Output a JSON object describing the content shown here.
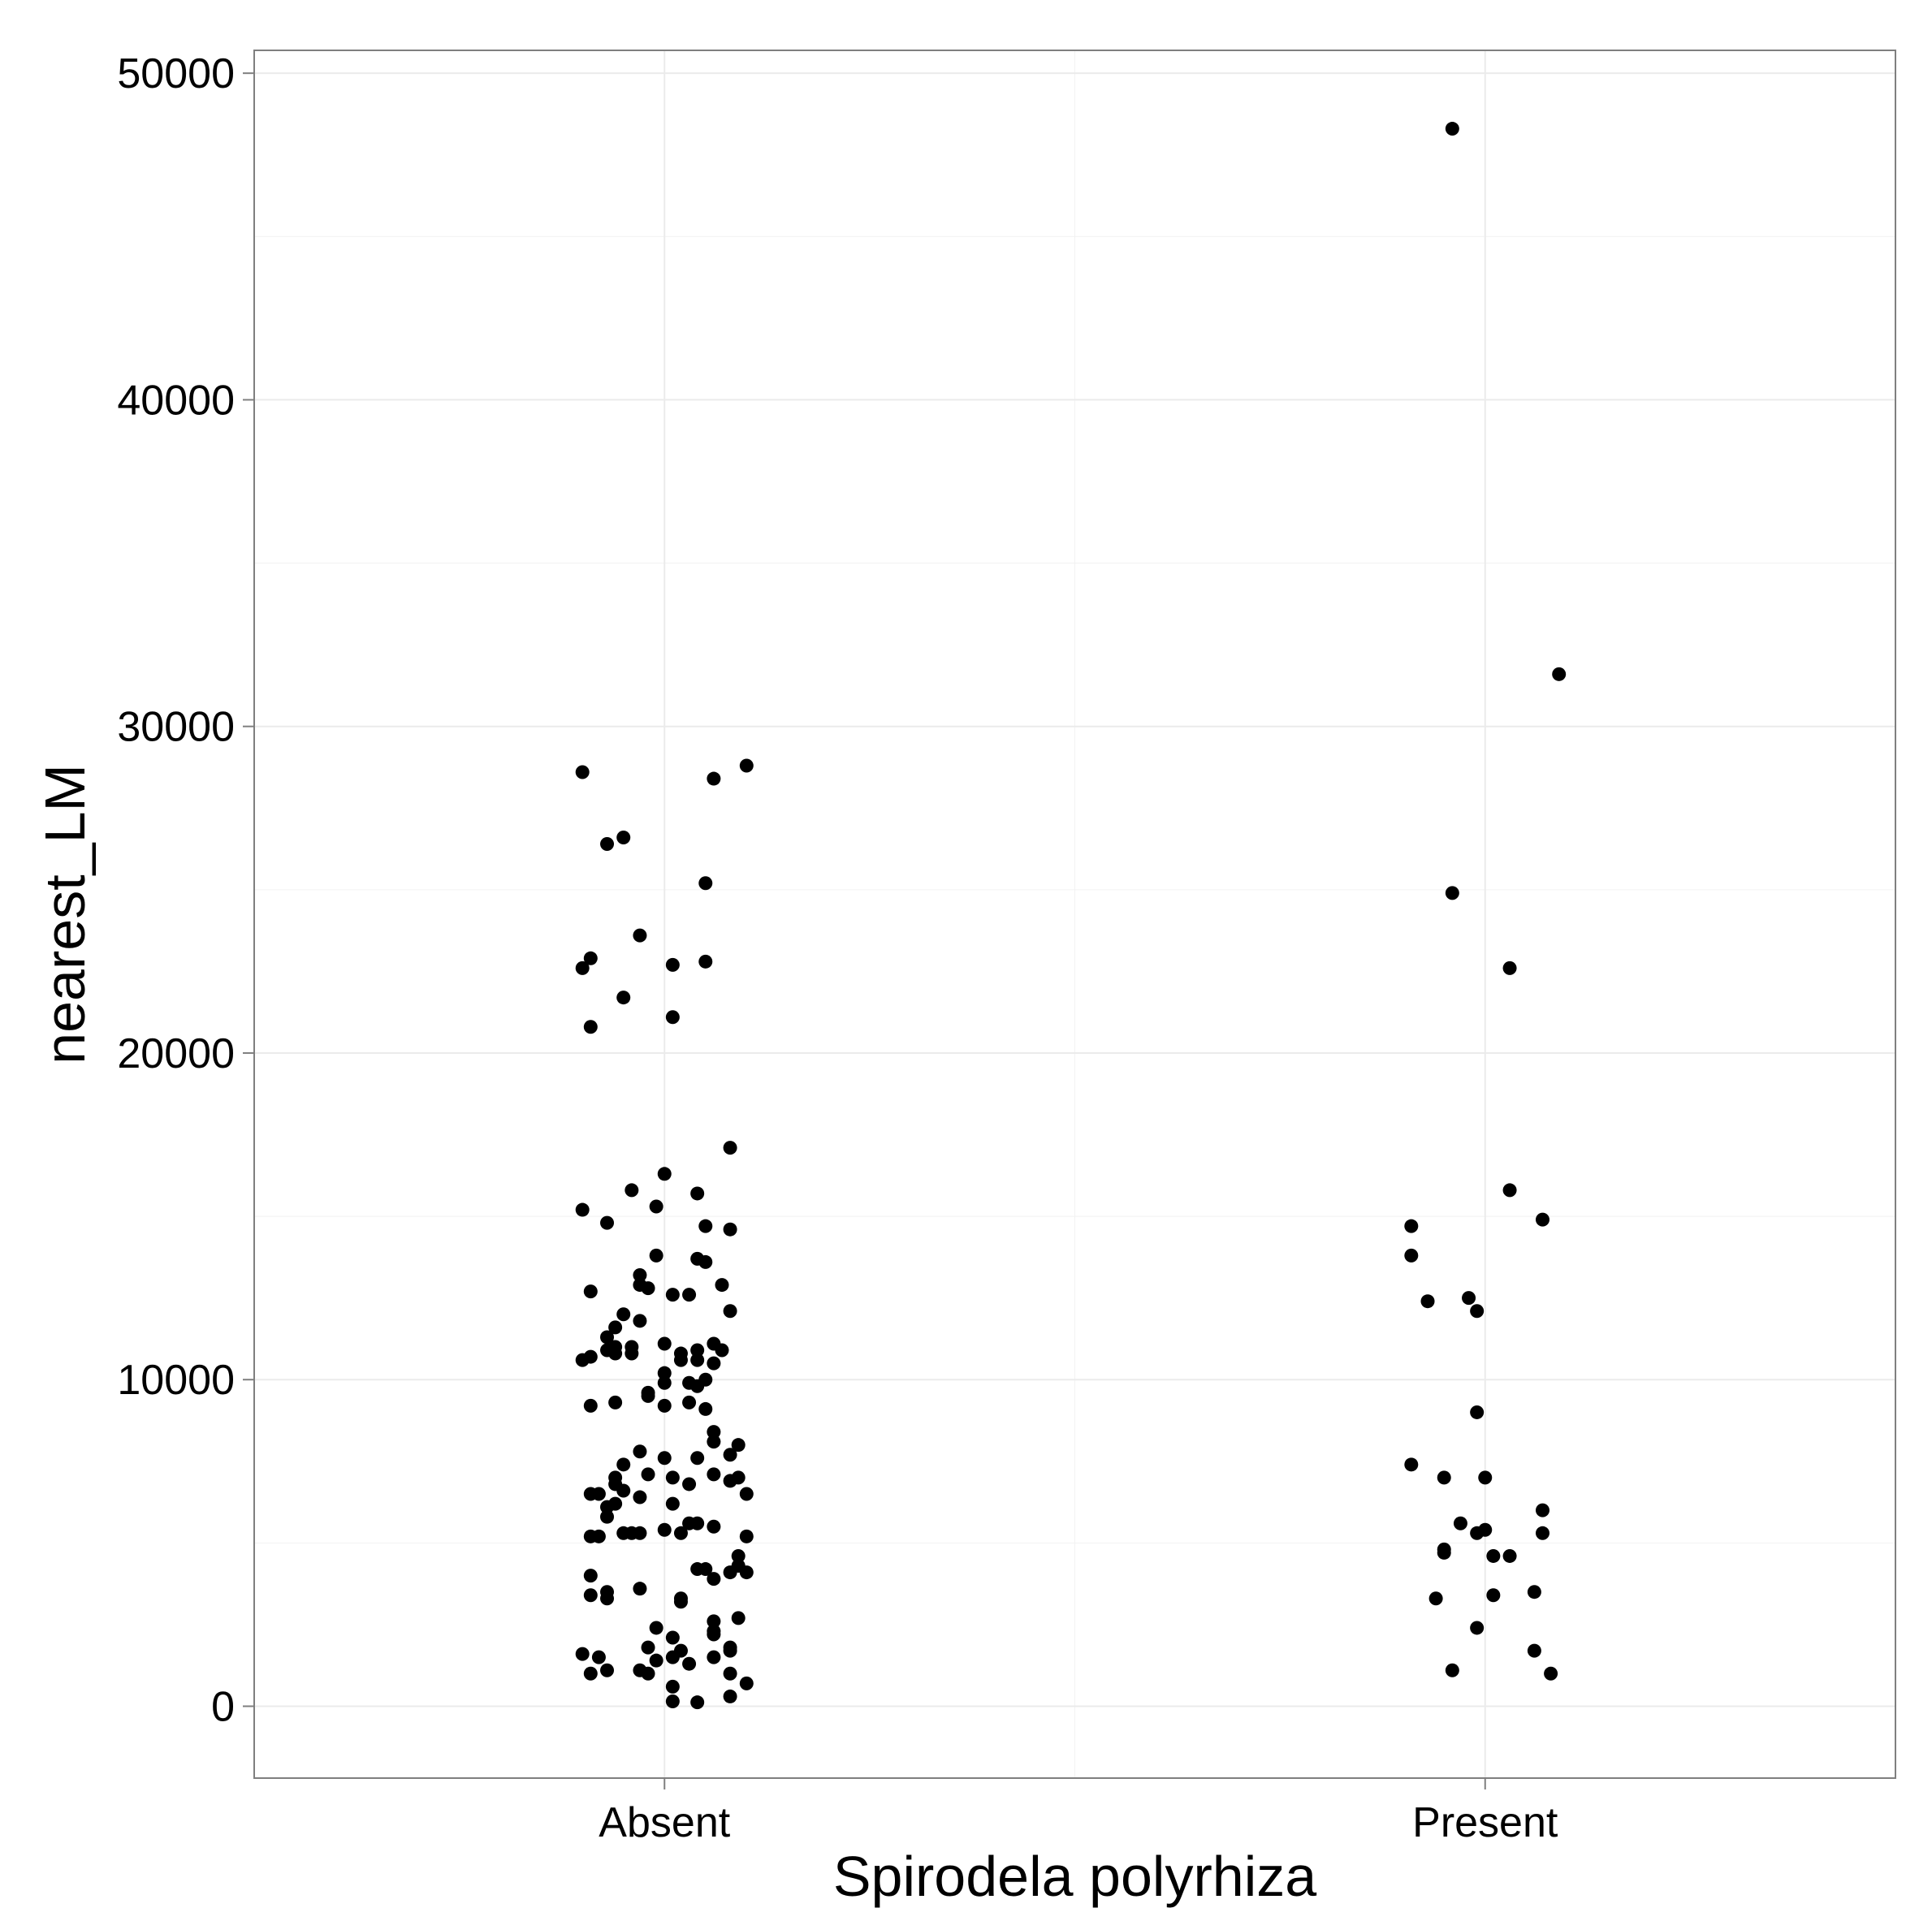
{
  "chart_data": {
    "type": "scatter",
    "xlabel": "Spirodela polyrhiza",
    "ylabel": "nearest_LM",
    "categories": [
      "Absent",
      "Present"
    ],
    "ylim": [
      -2200,
      50700
    ],
    "yticks": [
      0,
      10000,
      20000,
      30000,
      40000,
      50000
    ],
    "grid": true,
    "series": [
      {
        "category": "Absent",
        "points": [
          {
            "x": -0.1,
            "y": 28600
          },
          {
            "x": 0.06,
            "y": 28400
          },
          {
            "x": 0.1,
            "y": 28800
          },
          {
            "x": -0.07,
            "y": 26400
          },
          {
            "x": -0.05,
            "y": 26600
          },
          {
            "x": 0.05,
            "y": 25200
          },
          {
            "x": -0.03,
            "y": 23600
          },
          {
            "x": -0.1,
            "y": 22600
          },
          {
            "x": -0.09,
            "y": 22900
          },
          {
            "x": 0.01,
            "y": 22700
          },
          {
            "x": 0.05,
            "y": 22800
          },
          {
            "x": -0.05,
            "y": 21700
          },
          {
            "x": 0.01,
            "y": 21100
          },
          {
            "x": -0.09,
            "y": 20800
          },
          {
            "x": 0.08,
            "y": 17100
          },
          {
            "x": 0.0,
            "y": 16300
          },
          {
            "x": -0.04,
            "y": 15800
          },
          {
            "x": 0.04,
            "y": 15700
          },
          {
            "x": -0.1,
            "y": 15200
          },
          {
            "x": -0.01,
            "y": 15300
          },
          {
            "x": -0.07,
            "y": 14800
          },
          {
            "x": 0.05,
            "y": 14700
          },
          {
            "x": 0.08,
            "y": 14600
          },
          {
            "x": -0.01,
            "y": 13800
          },
          {
            "x": 0.04,
            "y": 13700
          },
          {
            "x": 0.05,
            "y": 13600
          },
          {
            "x": -0.03,
            "y": 13200
          },
          {
            "x": -0.03,
            "y": 12900
          },
          {
            "x": -0.02,
            "y": 12800
          },
          {
            "x": 0.07,
            "y": 12900
          },
          {
            "x": -0.09,
            "y": 12700
          },
          {
            "x": 0.01,
            "y": 12600
          },
          {
            "x": 0.03,
            "y": 12600
          },
          {
            "x": 0.08,
            "y": 12100
          },
          {
            "x": -0.05,
            "y": 12000
          },
          {
            "x": -0.03,
            "y": 11800
          },
          {
            "x": -0.06,
            "y": 11600
          },
          {
            "x": -0.07,
            "y": 11300
          },
          {
            "x": 0.0,
            "y": 11100
          },
          {
            "x": 0.06,
            "y": 11100
          },
          {
            "x": -0.06,
            "y": 11000
          },
          {
            "x": -0.04,
            "y": 11000
          },
          {
            "x": -0.07,
            "y": 10900
          },
          {
            "x": 0.04,
            "y": 10900
          },
          {
            "x": 0.07,
            "y": 10900
          },
          {
            "x": -0.06,
            "y": 10800
          },
          {
            "x": -0.04,
            "y": 10800
          },
          {
            "x": 0.02,
            "y": 10800
          },
          {
            "x": -0.09,
            "y": 10700
          },
          {
            "x": -0.1,
            "y": 10600
          },
          {
            "x": 0.02,
            "y": 10600
          },
          {
            "x": 0.04,
            "y": 10600
          },
          {
            "x": 0.06,
            "y": 10500
          },
          {
            "x": 0.0,
            "y": 10200
          },
          {
            "x": 0.05,
            "y": 10000
          },
          {
            "x": 0.0,
            "y": 9900
          },
          {
            "x": 0.03,
            "y": 9900
          },
          {
            "x": 0.04,
            "y": 9800
          },
          {
            "x": -0.02,
            "y": 9600
          },
          {
            "x": -0.02,
            "y": 9500
          },
          {
            "x": -0.06,
            "y": 9300
          },
          {
            "x": -0.09,
            "y": 9200
          },
          {
            "x": 0.0,
            "y": 9200
          },
          {
            "x": 0.03,
            "y": 9300
          },
          {
            "x": 0.05,
            "y": 9100
          },
          {
            "x": 0.06,
            "y": 8400
          },
          {
            "x": 0.06,
            "y": 8100
          },
          {
            "x": 0.09,
            "y": 8000
          },
          {
            "x": -0.03,
            "y": 7800
          },
          {
            "x": 0.04,
            "y": 7600
          },
          {
            "x": 0.0,
            "y": 7600
          },
          {
            "x": 0.08,
            "y": 7700
          },
          {
            "x": -0.05,
            "y": 7400
          },
          {
            "x": -0.02,
            "y": 7100
          },
          {
            "x": 0.06,
            "y": 7100
          },
          {
            "x": -0.06,
            "y": 7000
          },
          {
            "x": 0.01,
            "y": 7000
          },
          {
            "x": 0.08,
            "y": 6900
          },
          {
            "x": 0.09,
            "y": 7000
          },
          {
            "x": -0.06,
            "y": 6800
          },
          {
            "x": 0.03,
            "y": 6800
          },
          {
            "x": -0.05,
            "y": 6600
          },
          {
            "x": -0.08,
            "y": 6500
          },
          {
            "x": -0.09,
            "y": 6500
          },
          {
            "x": -0.03,
            "y": 6400
          },
          {
            "x": 0.1,
            "y": 6500
          },
          {
            "x": -0.06,
            "y": 6200
          },
          {
            "x": -0.07,
            "y": 6100
          },
          {
            "x": 0.01,
            "y": 6200
          },
          {
            "x": -0.07,
            "y": 5800
          },
          {
            "x": 0.03,
            "y": 5600
          },
          {
            "x": 0.04,
            "y": 5600
          },
          {
            "x": 0.06,
            "y": 5500
          },
          {
            "x": 0.0,
            "y": 5400
          },
          {
            "x": -0.05,
            "y": 5300
          },
          {
            "x": -0.03,
            "y": 5300
          },
          {
            "x": -0.04,
            "y": 5300
          },
          {
            "x": 0.02,
            "y": 5300
          },
          {
            "x": -0.08,
            "y": 5200
          },
          {
            "x": -0.09,
            "y": 5200
          },
          {
            "x": 0.1,
            "y": 5200
          },
          {
            "x": 0.09,
            "y": 4600
          },
          {
            "x": 0.09,
            "y": 4300
          },
          {
            "x": 0.1,
            "y": 4100
          },
          {
            "x": 0.04,
            "y": 4200
          },
          {
            "x": 0.05,
            "y": 4200
          },
          {
            "x": 0.08,
            "y": 4100
          },
          {
            "x": -0.09,
            "y": 4000
          },
          {
            "x": 0.06,
            "y": 3900
          },
          {
            "x": -0.03,
            "y": 3600
          },
          {
            "x": -0.07,
            "y": 3500
          },
          {
            "x": -0.09,
            "y": 3400
          },
          {
            "x": -0.07,
            "y": 3300
          },
          {
            "x": 0.02,
            "y": 3300
          },
          {
            "x": 0.02,
            "y": 3200
          },
          {
            "x": 0.06,
            "y": 2600
          },
          {
            "x": 0.09,
            "y": 2700
          },
          {
            "x": -0.01,
            "y": 2400
          },
          {
            "x": 0.06,
            "y": 2300
          },
          {
            "x": 0.06,
            "y": 2200
          },
          {
            "x": 0.01,
            "y": 2100
          },
          {
            "x": 0.08,
            "y": 1800
          },
          {
            "x": -0.02,
            "y": 1800
          },
          {
            "x": 0.02,
            "y": 1700
          },
          {
            "x": 0.08,
            "y": 1700
          },
          {
            "x": -0.1,
            "y": 1600
          },
          {
            "x": -0.08,
            "y": 1500
          },
          {
            "x": 0.01,
            "y": 1500
          },
          {
            "x": 0.06,
            "y": 1500
          },
          {
            "x": -0.01,
            "y": 1400
          },
          {
            "x": 0.03,
            "y": 1300
          },
          {
            "x": -0.07,
            "y": 1100
          },
          {
            "x": -0.03,
            "y": 1100
          },
          {
            "x": -0.09,
            "y": 1000
          },
          {
            "x": -0.02,
            "y": 1000
          },
          {
            "x": 0.08,
            "y": 1000
          },
          {
            "x": 0.1,
            "y": 700
          },
          {
            "x": 0.01,
            "y": 600
          },
          {
            "x": 0.08,
            "y": 300
          },
          {
            "x": 0.01,
            "y": 150
          },
          {
            "x": 0.04,
            "y": 120
          }
        ]
      },
      {
        "category": "Present",
        "points": [
          {
            "x": -0.04,
            "y": 48300
          },
          {
            "x": 0.09,
            "y": 31600
          },
          {
            "x": -0.04,
            "y": 24900
          },
          {
            "x": 0.03,
            "y": 22600
          },
          {
            "x": 0.03,
            "y": 15800
          },
          {
            "x": 0.07,
            "y": 14900
          },
          {
            "x": -0.09,
            "y": 14700
          },
          {
            "x": -0.09,
            "y": 13800
          },
          {
            "x": -0.07,
            "y": 12400
          },
          {
            "x": -0.02,
            "y": 12500
          },
          {
            "x": -0.01,
            "y": 12100
          },
          {
            "x": -0.01,
            "y": 9000
          },
          {
            "x": -0.09,
            "y": 7400
          },
          {
            "x": -0.05,
            "y": 7000
          },
          {
            "x": 0.0,
            "y": 7000
          },
          {
            "x": 0.07,
            "y": 6000
          },
          {
            "x": -0.03,
            "y": 5600
          },
          {
            "x": -0.01,
            "y": 5300
          },
          {
            "x": 0.0,
            "y": 5400
          },
          {
            "x": 0.07,
            "y": 5300
          },
          {
            "x": -0.05,
            "y": 4800
          },
          {
            "x": -0.05,
            "y": 4700
          },
          {
            "x": 0.01,
            "y": 4600
          },
          {
            "x": 0.03,
            "y": 4600
          },
          {
            "x": -0.06,
            "y": 3300
          },
          {
            "x": 0.01,
            "y": 3400
          },
          {
            "x": 0.06,
            "y": 3500
          },
          {
            "x": -0.01,
            "y": 2400
          },
          {
            "x": 0.06,
            "y": 1700
          },
          {
            "x": -0.04,
            "y": 1100
          },
          {
            "x": 0.08,
            "y": 1000
          }
        ]
      }
    ]
  }
}
